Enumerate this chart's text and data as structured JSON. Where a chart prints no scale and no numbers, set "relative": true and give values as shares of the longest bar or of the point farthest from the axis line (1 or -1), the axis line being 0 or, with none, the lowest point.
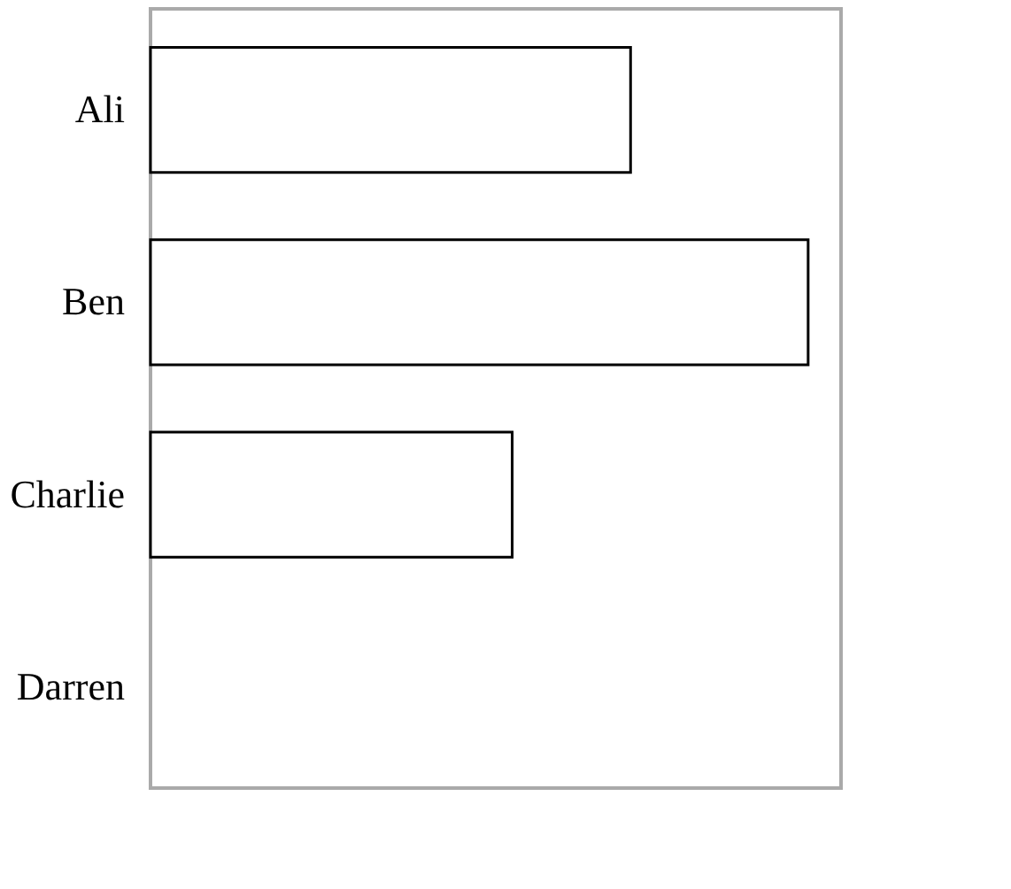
{
  "chart_data": {
    "type": "bar",
    "orientation": "horizontal",
    "relative": true,
    "categories": [
      "Ali",
      "Ben",
      "Charlie",
      "Darren"
    ],
    "values": [
      0.73,
      1,
      0.55,
      0
    ],
    "color": "#ffffff"
  }
}
